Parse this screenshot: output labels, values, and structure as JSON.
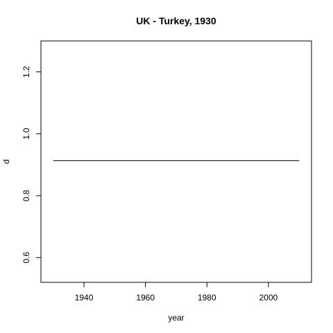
{
  "chart_data": {
    "type": "line",
    "title": "UK - Turkey, 1930",
    "xlabel": "year",
    "ylabel": "d",
    "xlim": [
      1926,
      2014
    ],
    "ylim": [
      0.52,
      1.3
    ],
    "xticks": [
      1940,
      1960,
      1980,
      2000
    ],
    "xtick_labels": [
      "1940",
      "1960",
      "1980",
      "2000"
    ],
    "yticks": [
      0.6,
      0.8,
      1.0,
      1.2
    ],
    "ytick_labels": [
      "0.6",
      "0.8",
      "1.0",
      "1.2"
    ],
    "series": [
      {
        "x": [
          1930,
          2010
        ],
        "y": [
          0.913,
          0.913
        ],
        "color": "#000000"
      }
    ],
    "grid": false,
    "legend": "none"
  }
}
